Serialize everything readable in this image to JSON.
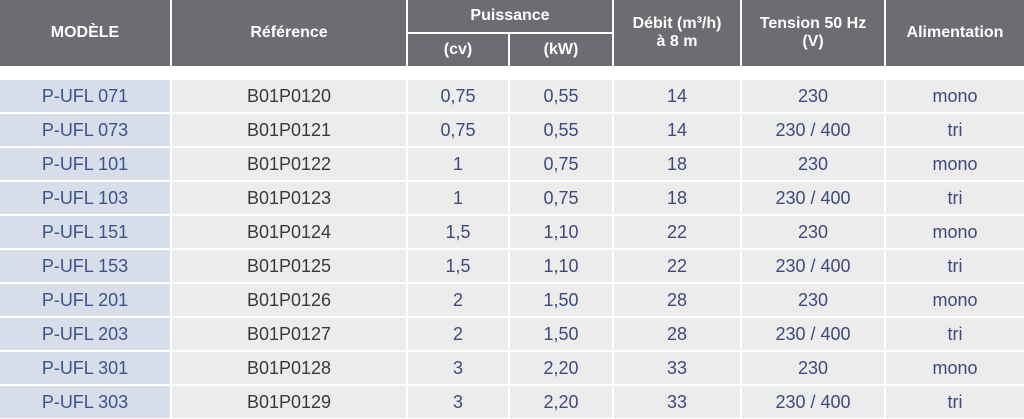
{
  "header": {
    "modele": "MODÈLE",
    "reference": "Référence",
    "puissance": "Puissance",
    "cv": "(cv)",
    "kw": "(kW)",
    "debit": [
      "Débit (m³/h)",
      "à 8 m"
    ],
    "tension": [
      "Tension 50 Hz",
      "(V)"
    ],
    "alimentation": "Alimentation"
  },
  "table": {
    "rows": [
      [
        "P-UFL 071",
        "B01P0120",
        "0,75",
        "0,55",
        "14",
        "230",
        "mono"
      ],
      [
        "P-UFL 073",
        "B01P0121",
        "0,75",
        "0,55",
        "14",
        "230 / 400",
        "tri"
      ],
      [
        "P-UFL 101",
        "B01P0122",
        "1",
        "0,75",
        "18",
        "230",
        "mono"
      ],
      [
        "P-UFL 103",
        "B01P0123",
        "1",
        "0,75",
        "18",
        "230 / 400",
        "tri"
      ],
      [
        "P-UFL 151",
        "B01P0124",
        "1,5",
        "1,10",
        "22",
        "230",
        "mono"
      ],
      [
        "P-UFL 153",
        "B01P0125",
        "1,5",
        "1,10",
        "22",
        "230 / 400",
        "tri"
      ],
      [
        "P-UFL 201",
        "B01P0126",
        "2",
        "1,50",
        "28",
        "230",
        "mono"
      ],
      [
        "P-UFL 203",
        "B01P0127",
        "2",
        "1,50",
        "28",
        "230 / 400",
        "tri"
      ],
      [
        "P-UFL 301",
        "B01P0128",
        "3",
        "2,20",
        "33",
        "230",
        "mono"
      ],
      [
        "P-UFL 303",
        "B01P0129",
        "3",
        "2,20",
        "33",
        "230 / 400",
        "tri"
      ]
    ]
  }
}
